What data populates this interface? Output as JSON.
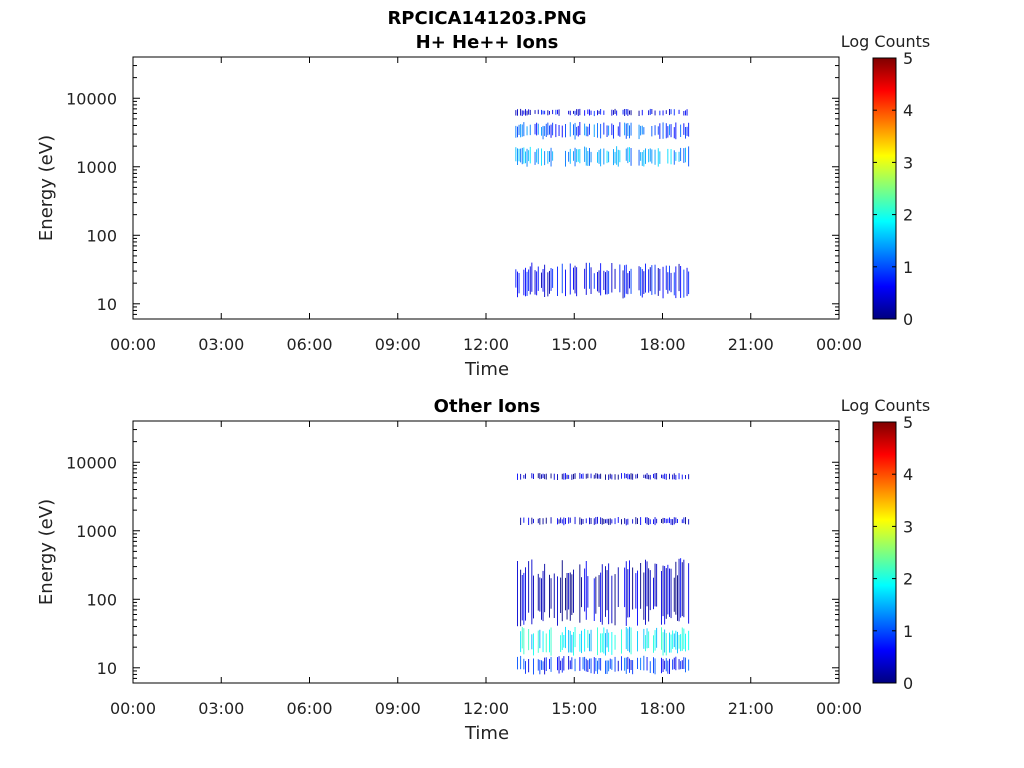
{
  "figure": {
    "title": "RPCICA141203.PNG"
  },
  "chart_data": [
    {
      "type": "heatmap",
      "title": "H+ He++ Ions",
      "xlabel": "Time",
      "ylabel": "Energy (eV)",
      "x_scale": "time",
      "y_scale": "log",
      "xlim": [
        "00:00",
        "24:00"
      ],
      "ylim": [
        6,
        40000
      ],
      "x_tick_labels": [
        "00:00",
        "03:00",
        "06:00",
        "09:00",
        "12:00",
        "15:00",
        "18:00",
        "21:00",
        "00:00"
      ],
      "y_tick_values": [
        10,
        100,
        1000,
        10000
      ],
      "y_tick_labels": [
        "10",
        "100",
        "1000",
        "10000"
      ],
      "colorbar": {
        "label": "Log Counts",
        "range": [
          0,
          5
        ],
        "tick_labels": [
          "0",
          "1",
          "2",
          "3",
          "4",
          "5"
        ],
        "colormap": "jet",
        "colors": [
          "#00007f",
          "#0000ff",
          "#007fff",
          "#00ffff",
          "#7fff7f",
          "#ffff00",
          "#ff7f00",
          "#ff0000",
          "#7f0000"
        ]
      },
      "data_time_range_hours": [
        13.0,
        18.9
      ],
      "bands": [
        {
          "e_min": 12,
          "e_max": 40,
          "log_counts": 0.6
        },
        {
          "e_min": 1000,
          "e_max": 2000,
          "log_counts": 1.4
        },
        {
          "e_min": 2500,
          "e_max": 4500,
          "log_counts": 1.0
        },
        {
          "e_min": 5500,
          "e_max": 7000,
          "log_counts": 0.5
        }
      ]
    },
    {
      "type": "heatmap",
      "title": "Other Ions",
      "xlabel": "Time",
      "ylabel": "Energy (eV)",
      "x_scale": "time",
      "y_scale": "log",
      "xlim": [
        "00:00",
        "24:00"
      ],
      "ylim": [
        6,
        40000
      ],
      "x_tick_labels": [
        "00:00",
        "03:00",
        "06:00",
        "09:00",
        "12:00",
        "15:00",
        "18:00",
        "21:00",
        "00:00"
      ],
      "y_tick_values": [
        10,
        100,
        1000,
        10000
      ],
      "y_tick_labels": [
        "10",
        "100",
        "1000",
        "10000"
      ],
      "colorbar": {
        "label": "Log Counts",
        "range": [
          0,
          5
        ],
        "tick_labels": [
          "0",
          "1",
          "2",
          "3",
          "4",
          "5"
        ],
        "colormap": "jet",
        "colors": [
          "#00007f",
          "#0000ff",
          "#007fff",
          "#00ffff",
          "#7fff7f",
          "#ffff00",
          "#ff7f00",
          "#ff0000",
          "#7f0000"
        ]
      },
      "data_time_range_hours": [
        13.0,
        18.9
      ],
      "bands": [
        {
          "e_min": 8,
          "e_max": 15,
          "log_counts": 0.8
        },
        {
          "e_min": 15,
          "e_max": 40,
          "log_counts": 1.8
        },
        {
          "e_min": 40,
          "e_max": 400,
          "log_counts": 0.3
        },
        {
          "e_min": 1200,
          "e_max": 1600,
          "log_counts": 0.3
        },
        {
          "e_min": 5500,
          "e_max": 7000,
          "log_counts": 0.3
        }
      ]
    }
  ]
}
